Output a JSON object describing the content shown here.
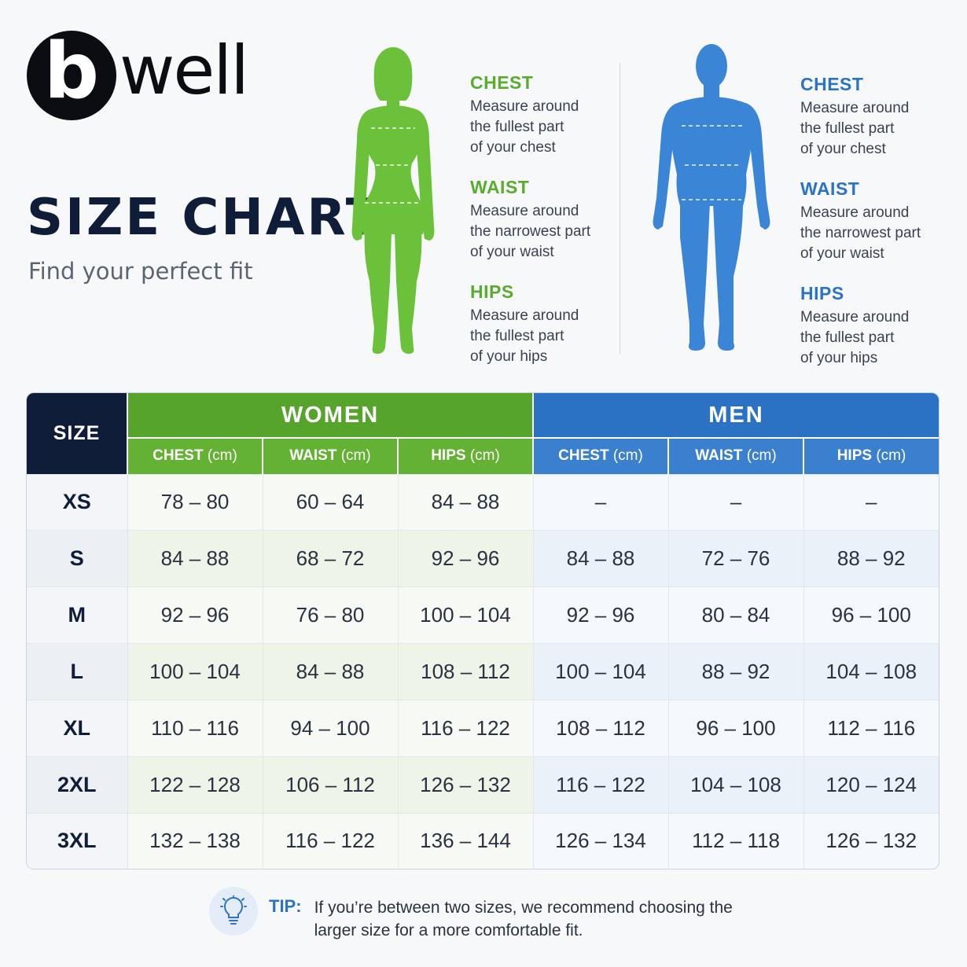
{
  "brand": {
    "logo_letter": "b",
    "logo_word": "well"
  },
  "header": {
    "title": "SIZE CHART",
    "subtitle": "Find your perfect fit"
  },
  "colors": {
    "women": "#56a42c",
    "men": "#2b72c4",
    "navy": "#0f1d38"
  },
  "guides": {
    "women": [
      {
        "title": "CHEST",
        "text": "Measure around\nthe fullest part\nof your chest"
      },
      {
        "title": "WAIST",
        "text": "Measure around\nthe narrowest part\nof your waist"
      },
      {
        "title": "HIPS",
        "text": "Measure around\nthe fullest part\nof your hips"
      }
    ],
    "men": [
      {
        "title": "CHEST",
        "text": "Measure around\nthe fullest part\nof your chest"
      },
      {
        "title": "WAIST",
        "text": "Measure around\nthe narrowest part\nof your waist"
      },
      {
        "title": "HIPS",
        "text": "Measure around\nthe fullest part\nof your hips"
      }
    ]
  },
  "table": {
    "size_header": "SIZE",
    "women_header": "WOMEN",
    "men_header": "MEN",
    "sub_headers": [
      {
        "label": "CHEST",
        "unit": "(cm)"
      },
      {
        "label": "WAIST",
        "unit": "(cm)"
      },
      {
        "label": "HIPS",
        "unit": "(cm)"
      }
    ],
    "rows": [
      {
        "size": "XS",
        "women": [
          "78 – 80",
          "60 – 64",
          "84 – 88"
        ],
        "men": [
          "–",
          "–",
          "–"
        ]
      },
      {
        "size": "S",
        "women": [
          "84 – 88",
          "68 – 72",
          "92 – 96"
        ],
        "men": [
          "84 – 88",
          "72 – 76",
          "88 – 92"
        ]
      },
      {
        "size": "M",
        "women": [
          "92 – 96",
          "76 – 80",
          "100 – 104"
        ],
        "men": [
          "92 – 96",
          "80 – 84",
          "96 – 100"
        ]
      },
      {
        "size": "L",
        "women": [
          "100 – 104",
          "84 – 88",
          "108 – 112"
        ],
        "men": [
          "100 – 104",
          "88 – 92",
          "104 – 108"
        ]
      },
      {
        "size": "XL",
        "women": [
          "110 – 116",
          "94 – 100",
          "116 – 122"
        ],
        "men": [
          "108 – 112",
          "96 – 100",
          "112 – 116"
        ]
      },
      {
        "size": "2XL",
        "women": [
          "122 – 128",
          "106 – 112",
          "126 – 132"
        ],
        "men": [
          "116 – 122",
          "104 – 108",
          "120 – 124"
        ]
      },
      {
        "size": "3XL",
        "women": [
          "132 – 138",
          "116 – 122",
          "136 – 144"
        ],
        "men": [
          "126 – 134",
          "112 – 118",
          "126 – 132"
        ]
      }
    ]
  },
  "tip": {
    "label": "TIP:",
    "text": "If you’re between two sizes, we recommend choosing the larger size for a more comfortable fit.",
    "icon": "lightbulb-icon"
  }
}
